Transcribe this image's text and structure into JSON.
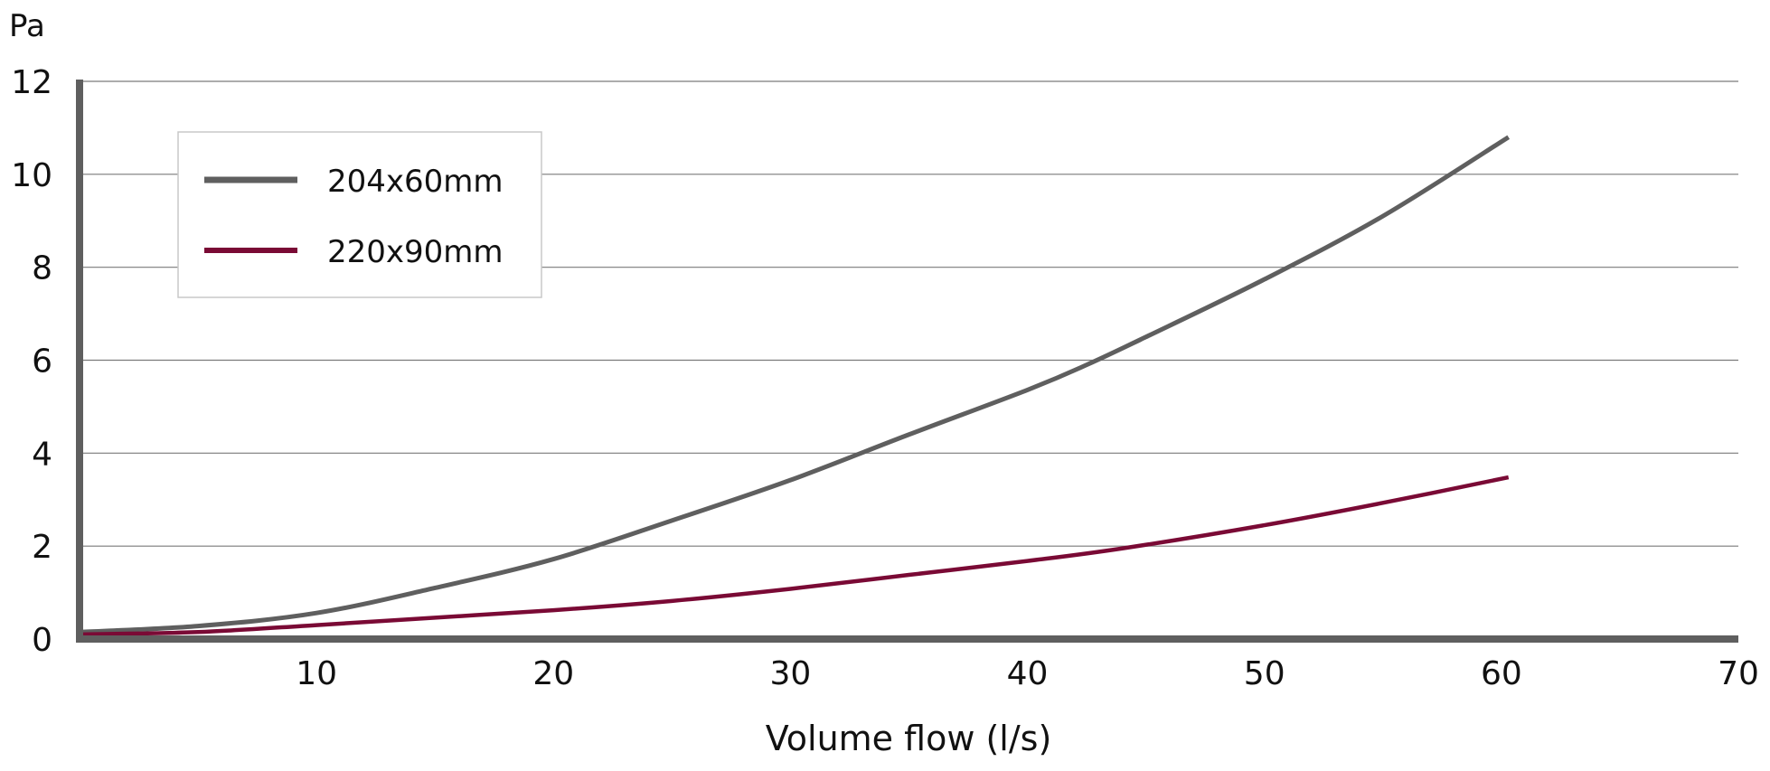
{
  "chart_data": {
    "type": "line",
    "title": "",
    "xlabel": "Volume flow (l/s)",
    "ylabel": "Pa",
    "xlim": [
      0,
      70
    ],
    "ylim": [
      0,
      12
    ],
    "xticks": [
      10,
      20,
      30,
      40,
      50,
      60,
      70
    ],
    "yticks": [
      0,
      2,
      4,
      6,
      8,
      10,
      12
    ],
    "grid": "horizontal",
    "legend_position": "top-left",
    "series": [
      {
        "name": "204x60mm",
        "color": "#5f5f5f",
        "x": [
          0,
          5,
          10,
          15,
          20,
          25,
          30,
          35,
          40,
          42.5,
          45,
          50,
          55,
          60.3
        ],
        "y": [
          0.15,
          0.28,
          0.56,
          1.1,
          1.72,
          2.55,
          3.42,
          4.4,
          5.36,
          5.9,
          6.5,
          7.74,
          9.1,
          10.8
        ]
      },
      {
        "name": "220x90mm",
        "color": "#7a0a35",
        "x": [
          0,
          5,
          10,
          15,
          20,
          25,
          30,
          35,
          40,
          44,
          50,
          55,
          60.3
        ],
        "y": [
          0.1,
          0.15,
          0.3,
          0.46,
          0.62,
          0.82,
          1.08,
          1.38,
          1.68,
          1.95,
          2.45,
          2.93,
          3.48
        ]
      }
    ]
  }
}
